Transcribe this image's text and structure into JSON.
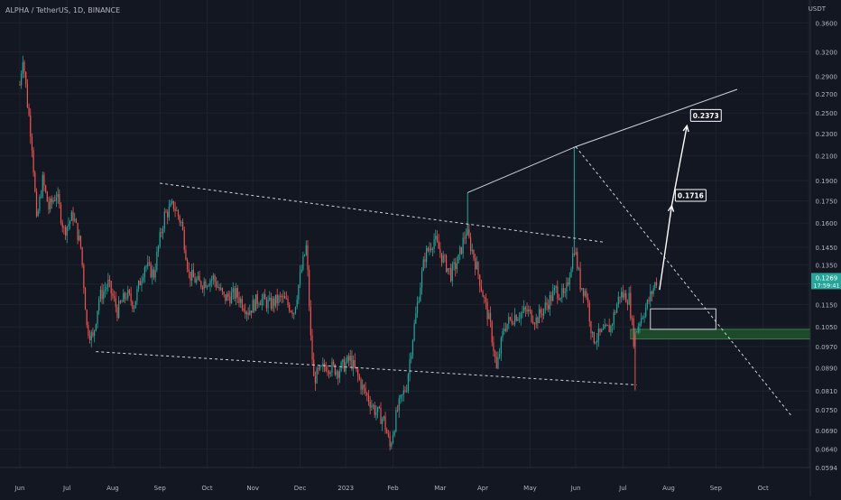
{
  "header": {
    "symbol_line": "ALPHA / TetherUS, 1D, BINANCE"
  },
  "colors": {
    "background": "#131722",
    "grid": "#1e222d",
    "axis_text": "#b2b5be",
    "bull": "#26a69a",
    "bear": "#ef5350",
    "annotation": "#d1d4dc",
    "price_label_bg": "#26a69a",
    "target_zone": "#1e4a2c",
    "target_zone_border": "#3c7a46"
  },
  "chart_data": {
    "type": "candlestick",
    "title": "",
    "price_unit": "USDT",
    "price_scale": "log",
    "ylim": [
      0.0594,
      0.395
    ],
    "y_ticks": [
      "0.3600",
      "0.3200",
      "0.2900",
      "0.2700",
      "0.2500",
      "0.2300",
      "0.2100",
      "0.1900",
      "0.1750",
      "0.1600",
      "0.1450",
      "0.1350",
      "0.1250",
      "0.1150",
      "0.1050",
      "0.0970",
      "0.0890",
      "0.0810",
      "0.0750",
      "0.0690",
      "0.0640",
      "0.0594"
    ],
    "x_ticks": [
      "May",
      "Jun",
      "Jul",
      "Aug",
      "Sep",
      "Oct",
      "Nov",
      "Dec",
      "2023",
      "Feb",
      "Mar",
      "Apr",
      "May",
      "Jun",
      "Jul",
      "Aug",
      "Sep",
      "Oct"
    ],
    "grid": true,
    "current_price": {
      "value": "0.1269",
      "countdown": "17:59:41"
    },
    "price_path": [
      [
        "2022-05-01",
        0.28
      ],
      [
        "2022-05-03",
        0.315
      ],
      [
        "2022-05-06",
        0.26
      ],
      [
        "2022-05-09",
        0.22
      ],
      [
        "2022-05-12",
        0.16
      ],
      [
        "2022-05-16",
        0.19
      ],
      [
        "2022-05-20",
        0.17
      ],
      [
        "2022-05-25",
        0.18
      ],
      [
        "2022-05-30",
        0.155
      ],
      [
        "2022-06-05",
        0.165
      ],
      [
        "2022-06-10",
        0.145
      ],
      [
        "2022-06-14",
        0.105
      ],
      [
        "2022-06-18",
        0.1
      ],
      [
        "2022-06-22",
        0.118
      ],
      [
        "2022-06-28",
        0.125
      ],
      [
        "2022-07-04",
        0.112
      ],
      [
        "2022-07-10",
        0.12
      ],
      [
        "2022-07-15",
        0.115
      ],
      [
        "2022-07-22",
        0.135
      ],
      [
        "2022-07-28",
        0.13
      ],
      [
        "2022-08-04",
        0.165
      ],
      [
        "2022-08-10",
        0.172
      ],
      [
        "2022-08-15",
        0.16
      ],
      [
        "2022-08-20",
        0.13
      ],
      [
        "2022-08-27",
        0.125
      ],
      [
        "2022-09-05",
        0.128
      ],
      [
        "2022-09-12",
        0.118
      ],
      [
        "2022-09-20",
        0.12
      ],
      [
        "2022-09-28",
        0.112
      ],
      [
        "2022-10-05",
        0.118
      ],
      [
        "2022-10-12",
        0.115
      ],
      [
        "2022-10-20",
        0.118
      ],
      [
        "2022-10-28",
        0.112
      ],
      [
        "2022-11-05",
        0.145
      ],
      [
        "2022-11-08",
        0.1
      ],
      [
        "2022-11-10",
        0.085
      ],
      [
        "2022-11-18",
        0.09
      ],
      [
        "2022-11-26",
        0.088
      ],
      [
        "2022-12-04",
        0.092
      ],
      [
        "2022-12-12",
        0.082
      ],
      [
        "2022-12-20",
        0.075
      ],
      [
        "2022-12-26",
        0.072
      ],
      [
        "2022-12-30",
        0.0645
      ],
      [
        "2023-01-04",
        0.075
      ],
      [
        "2023-01-10",
        0.083
      ],
      [
        "2023-01-16",
        0.11
      ],
      [
        "2023-01-22",
        0.14
      ],
      [
        "2023-01-28",
        0.15
      ],
      [
        "2023-02-03",
        0.138
      ],
      [
        "2023-02-08",
        0.13
      ],
      [
        "2023-02-13",
        0.138
      ],
      [
        "2023-02-18",
        0.155
      ],
      [
        "2023-02-23",
        0.14
      ],
      [
        "2023-03-01",
        0.12
      ],
      [
        "2023-03-06",
        0.105
      ],
      [
        "2023-03-10",
        0.088
      ],
      [
        "2023-03-15",
        0.105
      ],
      [
        "2023-03-22",
        0.11
      ],
      [
        "2023-03-30",
        0.112
      ],
      [
        "2023-04-05",
        0.108
      ],
      [
        "2023-04-12",
        0.115
      ],
      [
        "2023-04-18",
        0.122
      ],
      [
        "2023-04-24",
        0.118
      ],
      [
        "2023-04-30",
        0.145
      ],
      [
        "2023-05-04",
        0.125
      ],
      [
        "2023-05-08",
        0.12
      ],
      [
        "2023-05-12",
        0.1
      ],
      [
        "2023-05-18",
        0.102
      ],
      [
        "2023-05-24",
        0.105
      ],
      [
        "2023-05-30",
        0.12
      ],
      [
        "2023-06-05",
        0.118
      ],
      [
        "2023-06-08",
        0.1
      ],
      [
        "2023-06-12",
        0.108
      ],
      [
        "2023-06-17",
        0.115
      ],
      [
        "2023-06-23",
        0.1269
      ]
    ],
    "wick_spikes": [
      {
        "date": "2023-02-19",
        "high": 0.181
      },
      {
        "date": "2023-04-30",
        "high": 0.218
      },
      {
        "date": "2023-06-09",
        "low": 0.0812
      }
    ],
    "annotations": {
      "targets": [
        {
          "label": "0.1716",
          "price": 0.1716
        },
        {
          "label": "0.2373",
          "price": 0.2373
        }
      ],
      "trendlines": [
        {
          "style": "dashed",
          "points": [
            [
              "2022-08-01",
              0.188
            ],
            [
              "2023-05-20",
              0.148
            ]
          ]
        },
        {
          "style": "dashed",
          "points": [
            [
              "2022-06-20",
              0.095
            ],
            [
              "2023-06-10",
              0.083
            ]
          ]
        },
        {
          "style": "dashed",
          "points": [
            [
              "2023-05-01",
              0.218
            ],
            [
              "2023-09-20",
              0.073
            ]
          ]
        },
        {
          "style": "solid",
          "points": [
            [
              "2023-02-19",
              0.181
            ],
            [
              "2023-05-01",
              0.218
            ],
            [
              "2023-08-15",
              0.275
            ]
          ]
        }
      ],
      "projection": [
        [
          "2023-06-25",
          0.122
        ],
        [
          "2023-07-03",
          0.1716
        ],
        [
          "2023-07-13",
          0.2373
        ]
      ],
      "rectangle": {
        "from": [
          "2023-06-19",
          0.113
        ],
        "to": [
          "2023-08-01",
          0.104
        ]
      },
      "support_zone": {
        "from_date": "2023-06-06",
        "top": 0.104,
        "bottom": 0.1
      }
    }
  }
}
